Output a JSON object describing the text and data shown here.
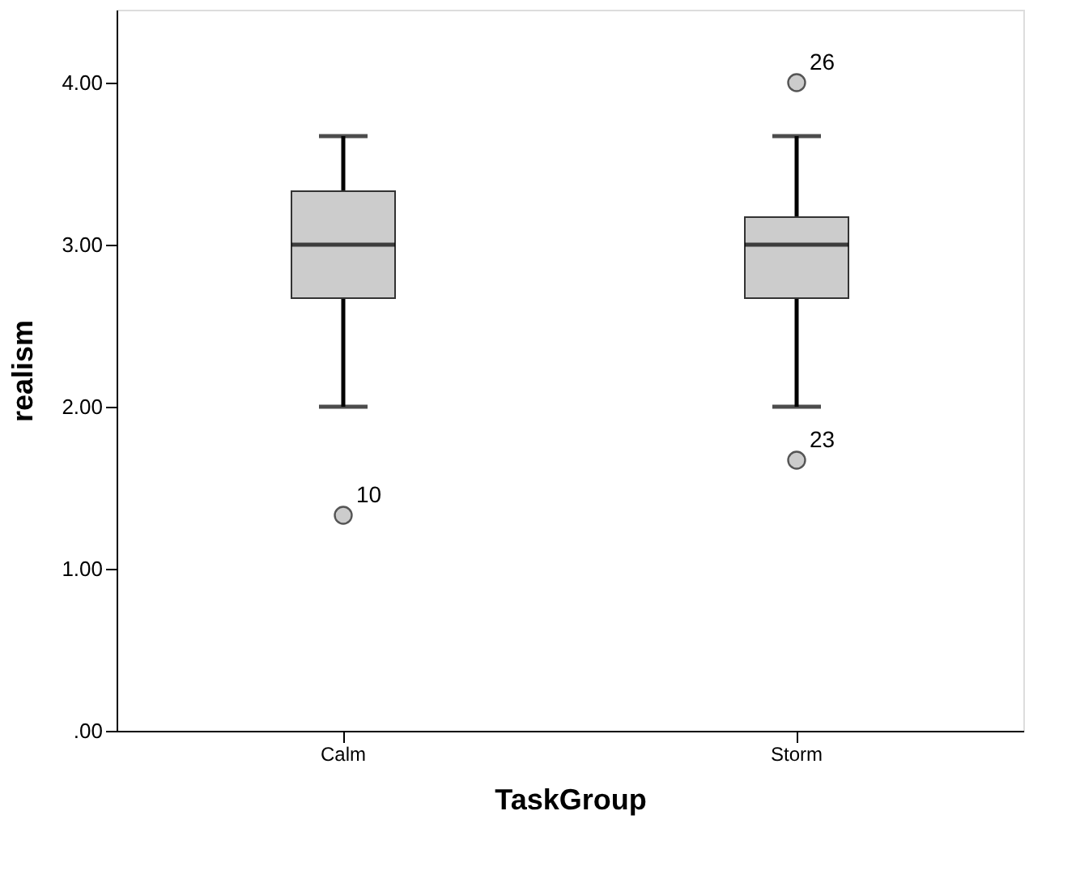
{
  "chart_data": {
    "type": "box",
    "xlabel": "TaskGroup",
    "ylabel": "realism",
    "categories": [
      "Calm",
      "Storm"
    ],
    "boxes": [
      {
        "low": 2.0,
        "q1": 2.67,
        "median": 3.0,
        "q3": 3.33,
        "high": 3.67,
        "outliers": [
          1.33
        ]
      },
      {
        "low": 2.0,
        "q1": 2.67,
        "median": 3.0,
        "q3": 3.17,
        "high": 3.67,
        "outliers": [
          4.0,
          1.67
        ]
      }
    ],
    "color": "#cccccc",
    "ylim": [
      0,
      4.45
    ],
    "yticks": [
      {
        "value": 0,
        "label": ".00"
      },
      {
        "value": 1,
        "label": "1.00"
      },
      {
        "value": 2,
        "label": "2.00"
      },
      {
        "value": 3,
        "label": "3.00"
      },
      {
        "value": 4,
        "label": "4.00"
      }
    ],
    "annotations": [
      "10",
      "26",
      "23"
    ],
    "grid": false
  }
}
